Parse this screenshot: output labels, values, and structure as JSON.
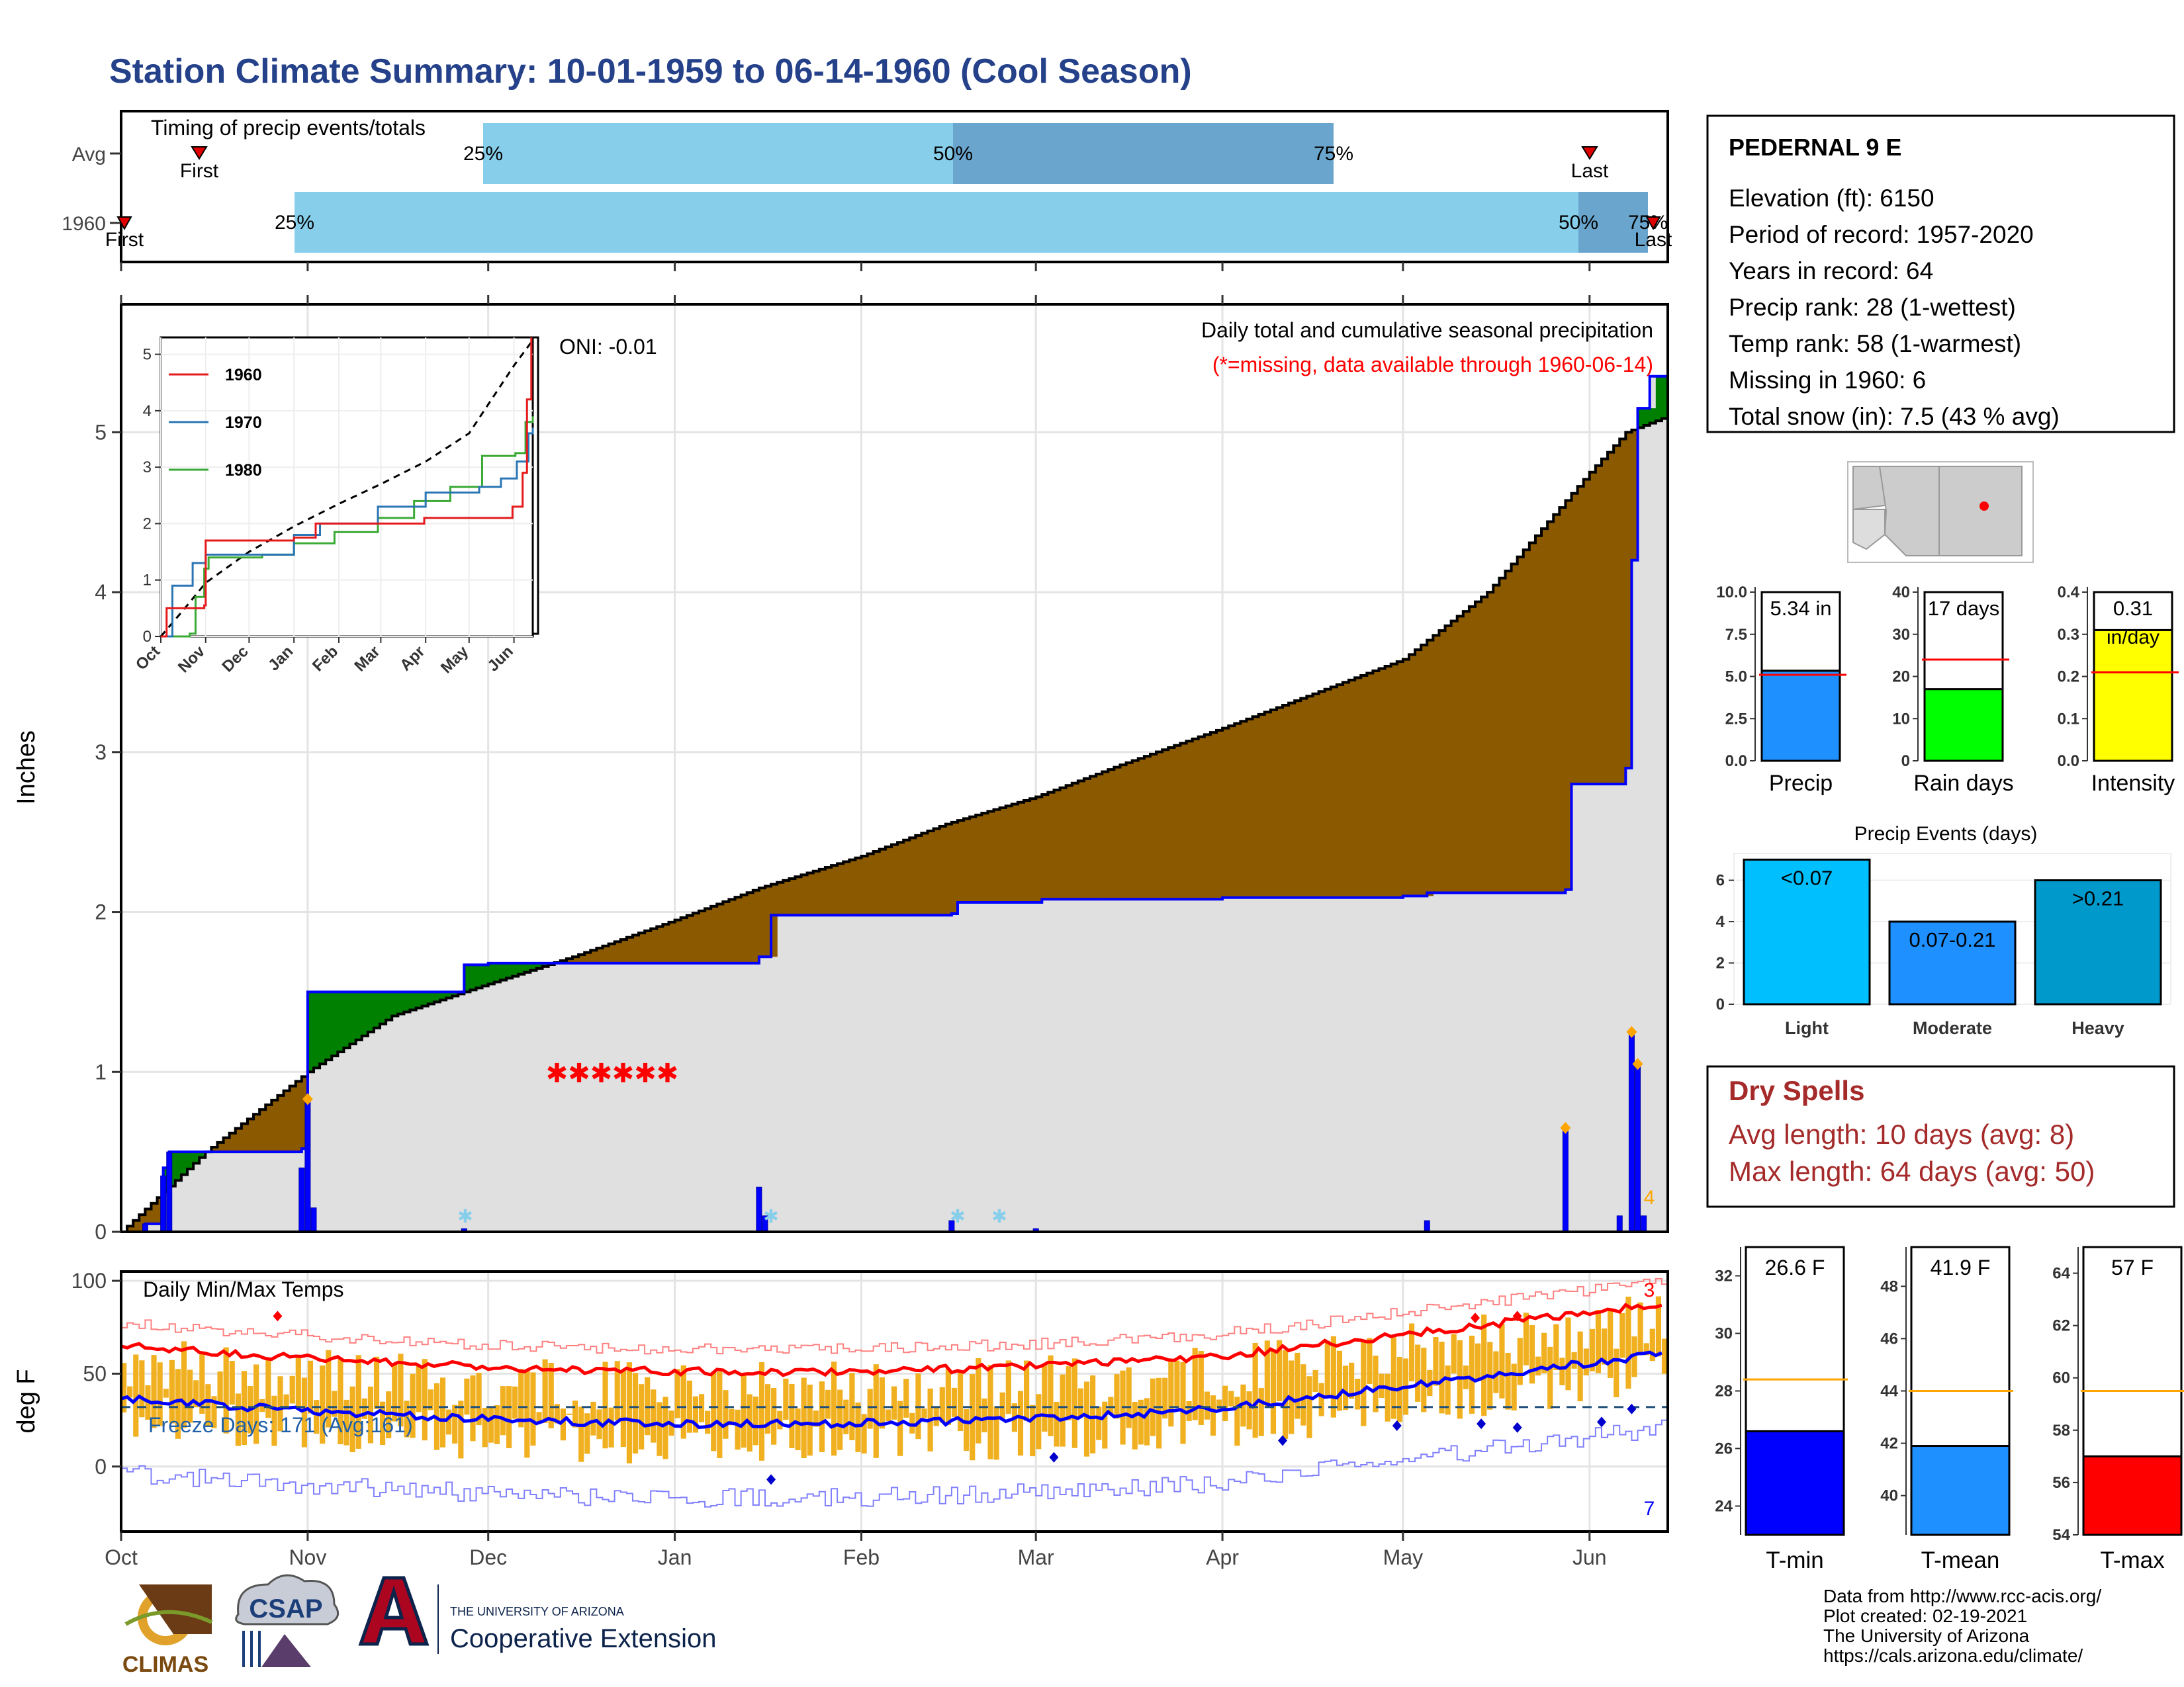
{
  "page": {
    "title": "Station Climate Summary: 10-01-1959 to 06-14-1960 (Cool Season)"
  },
  "colors": {
    "title": "#24418a",
    "light_blue": "#87ceeb",
    "mid_blue": "#6aa5cd",
    "brown": "#8b5a00",
    "green": "#008000",
    "gray_fill": "#e0e0e0",
    "step_blue": "#0000ff",
    "precip_bar": "#1e90ff",
    "rain_bar": "#00ff00",
    "intensity_bar": "#ffff00",
    "light_event": "#00bfff",
    "moderate_event": "#1e90ff",
    "heavy_event": "#0099cc",
    "temp_bar": "#f0b020",
    "tmax_line": "#ff0000",
    "tmin_line": "#0000ff",
    "orange_marker": "#ffa500",
    "dry_spells": "#a52a2a"
  },
  "timing": {
    "title": "Timing of precip events/totals",
    "rows": [
      {
        "label": "Avg",
        "first": "First",
        "last": "Last",
        "p25": "25%",
        "p50": "50%",
        "p75": "75%"
      },
      {
        "label": "1960",
        "first": "First",
        "last": "Last",
        "p25": "25%",
        "p50": "50%",
        "p75": "75%"
      }
    ]
  },
  "precip_panel": {
    "ylabel": "Inches",
    "title": "Daily total and cumulative seasonal precipitation",
    "note": "(*=missing, data available through 1960-06-14)",
    "oni": "ONI: -0.01",
    "y_ticks": [
      "0",
      "1",
      "2",
      "3",
      "4",
      "5"
    ],
    "corner_count": "4",
    "inset": {
      "y_ticks": [
        "0",
        "1",
        "2",
        "3",
        "4",
        "5"
      ],
      "x_ticks": [
        "Oct",
        "Nov",
        "Dec",
        "Jan",
        "Feb",
        "Mar",
        "Apr",
        "May",
        "Jun"
      ],
      "legend": [
        "1960",
        "1970",
        "1980"
      ]
    }
  },
  "temp_panel": {
    "ylabel": "deg F",
    "title": "Daily Min/Max Temps",
    "freeze": "Freeze Days: 171 (Avg:161)",
    "y_ticks": [
      "0",
      "50",
      "100"
    ],
    "count_top": "3",
    "count_bottom": "7"
  },
  "x_axis": {
    "ticks": [
      "Oct",
      "Nov",
      "Dec",
      "Jan",
      "Feb",
      "Mar",
      "Apr",
      "May",
      "Jun"
    ]
  },
  "station": {
    "name": "PEDERNAL 9 E",
    "lines": [
      "Elevation (ft): 6150",
      "Period of record: 1957-2020",
      "Years in record: 64",
      "Precip rank: 28 (1-wettest)",
      "Temp rank: 58 (1-warmest)",
      "Missing in 1960: 6",
      "Total snow (in): 7.5 (43 % avg)"
    ]
  },
  "precip_summary": [
    {
      "label": "Precip",
      "value_text": "5.34 in",
      "unit_text": "",
      "value": 5.34,
      "avg": 5.1,
      "ymax": 10.0,
      "ticks": [
        "0.0",
        "2.5",
        "5.0",
        "7.5",
        "10.0"
      ]
    },
    {
      "label": "Rain days",
      "value_text": "17 days",
      "unit_text": "",
      "value": 17,
      "avg": 24,
      "ymax": 40,
      "ticks": [
        "0",
        "10",
        "20",
        "30",
        "40"
      ]
    },
    {
      "label": "Intensity",
      "value_text": "0.31",
      "unit_text": "in/day",
      "value": 0.31,
      "avg": 0.21,
      "ymax": 0.4,
      "ticks": [
        "0.0",
        "0.1",
        "0.2",
        "0.3",
        "0.4"
      ]
    }
  ],
  "precip_events": {
    "title": "Precip Events (days)",
    "y_ticks": [
      "0",
      "2",
      "4",
      "6"
    ],
    "bars": [
      {
        "category": "Light",
        "label": "<0.07",
        "value": 7
      },
      {
        "category": "Moderate",
        "label": "0.07-0.21",
        "value": 4
      },
      {
        "category": "Heavy",
        "label": ">0.21",
        "value": 6
      }
    ]
  },
  "dry_spells": {
    "title": "Dry Spells",
    "avg": "Avg length: 10 days (avg: 8)",
    "max": "Max length: 64 days (avg: 50)"
  },
  "temp_summary": [
    {
      "label": "T-min",
      "value_text": "26.6 F",
      "value": 26.6,
      "avg": 28.4,
      "range": [
        23,
        33
      ],
      "ticks": [
        "24",
        "26",
        "28",
        "30",
        "32"
      ]
    },
    {
      "label": "T-mean",
      "value_text": "41.9 F",
      "value": 41.9,
      "avg": 44.0,
      "range": [
        38.5,
        49.5
      ],
      "ticks": [
        "40",
        "42",
        "44",
        "46",
        "48"
      ]
    },
    {
      "label": "T-max",
      "value_text": "57 F",
      "value": 57.0,
      "avg": 59.5,
      "range": [
        54,
        65
      ],
      "ticks": [
        "54",
        "56",
        "58",
        "60",
        "62",
        "64"
      ]
    }
  ],
  "footer": {
    "lines": [
      "Data from http://www.rcc-acis.org/",
      "Plot created: 02-19-2021",
      "The University of Arizona",
      "https://cals.arizona.edu/climate/"
    ],
    "logos": {
      "climas": "CLIMAS",
      "csap": "CSAP",
      "ua_small": "THE UNIVERSITY OF ARIZONA",
      "ua_big": "Cooperative Extension"
    }
  },
  "chart_data": {
    "type": "area",
    "title": "Daily total and cumulative seasonal precipitation",
    "ylabel": "Inches",
    "ylim": [
      0,
      5.8
    ],
    "x_range": [
      "1959-10-01",
      "1960-06-14"
    ],
    "series": [
      {
        "name": "1960",
        "x": [
          "1959-10-01",
          "1959-10-05",
          "1959-10-08",
          "1959-10-09",
          "1959-10-31",
          "1959-11-01",
          "1959-11-27",
          "1959-12-01",
          "1960-01-15",
          "1960-01-17",
          "1960-02-16",
          "1960-02-17",
          "1960-03-01",
          "1960-03-02",
          "1960-04-01",
          "1960-05-01",
          "1960-05-05",
          "1960-05-28",
          "1960-05-29",
          "1960-06-06",
          "1960-06-07",
          "1960-06-08",
          "1960-06-09",
          "1960-06-11",
          "1960-06-14"
        ],
        "y": [
          0.0,
          0.05,
          0.4,
          0.5,
          0.52,
          1.5,
          1.67,
          1.68,
          1.72,
          1.98,
          1.99,
          2.06,
          2.06,
          2.08,
          2.09,
          2.1,
          2.12,
          2.14,
          2.8,
          2.8,
          2.9,
          4.2,
          5.15,
          5.35,
          5.34
        ]
      },
      {
        "name": "Average",
        "x": [
          "1959-10-01",
          "1959-10-15",
          "1959-11-01",
          "1959-11-15",
          "1959-12-01",
          "1959-12-15",
          "1960-01-01",
          "1960-01-15",
          "1960-02-01",
          "1960-02-15",
          "1960-03-01",
          "1960-03-15",
          "1960-04-01",
          "1960-04-15",
          "1960-05-01",
          "1960-05-15",
          "1960-06-01",
          "1960-06-07",
          "1960-06-14"
        ],
        "y": [
          0.0,
          0.5,
          1.0,
          1.35,
          1.55,
          1.72,
          1.95,
          2.15,
          2.35,
          2.55,
          2.72,
          2.92,
          3.15,
          3.35,
          3.58,
          4.0,
          4.75,
          5.0,
          5.1
        ]
      }
    ],
    "daily_precip": [
      {
        "x": "1959-10-05",
        "y": 0.05
      },
      {
        "x": "1959-10-08",
        "y": 0.35
      },
      {
        "x": "1959-10-09",
        "y": 0.5
      },
      {
        "x": "1959-10-31",
        "y": 0.4
      },
      {
        "x": "1959-11-01",
        "y": 0.83
      },
      {
        "x": "1959-11-02",
        "y": 0.15
      },
      {
        "x": "1959-11-27",
        "y": 0.02
      },
      {
        "x": "1960-01-15",
        "y": 0.28
      },
      {
        "x": "1960-01-16",
        "y": 0.1
      },
      {
        "x": "1960-02-16",
        "y": 0.07
      },
      {
        "x": "1960-03-01",
        "y": 0.02
      },
      {
        "x": "1960-05-05",
        "y": 0.07
      },
      {
        "x": "1960-05-28",
        "y": 0.65
      },
      {
        "x": "1960-06-06",
        "y": 0.1
      },
      {
        "x": "1960-06-08",
        "y": 1.25
      },
      {
        "x": "1960-06-09",
        "y": 1.05
      },
      {
        "x": "1960-06-10",
        "y": 0.1
      }
    ]
  }
}
